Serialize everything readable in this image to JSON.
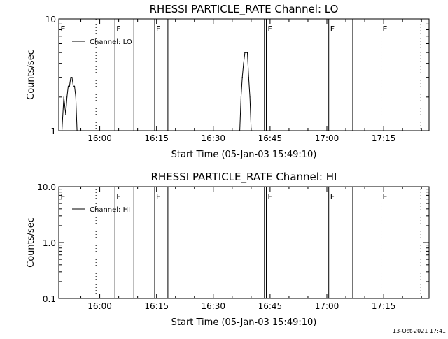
{
  "timestamp": "13-Oct-2021 17:41",
  "chart_data": [
    {
      "type": "line",
      "title": "RHESSI PARTICLE_RATE Channel: LO",
      "xlabel": "Start Time (05-Jan-03 15:49:10)",
      "ylabel": "Counts/sec",
      "yscale": "log",
      "ylim": [
        1,
        10
      ],
      "xlim": [
        "15:49:10",
        "17:27:00"
      ],
      "x_ticks": [
        "16:00",
        "16:15",
        "16:30",
        "16:45",
        "17:00",
        "17:15"
      ],
      "y_ticks": [
        {
          "value": 1,
          "label": "1"
        },
        {
          "value": 10,
          "label": "10"
        }
      ],
      "legend": "top-left",
      "series": [
        {
          "name": "Channel: LO",
          "points": [
            [
              "15:50:00",
              1
            ],
            [
              "15:50:30",
              2
            ],
            [
              "15:51:00",
              1.4
            ],
            [
              "15:51:20",
              2
            ],
            [
              "15:51:40",
              2.5
            ],
            [
              "15:52:00",
              2.5
            ],
            [
              "15:52:20",
              3
            ],
            [
              "15:52:40",
              3
            ],
            [
              "15:53:00",
              2.5
            ],
            [
              "15:53:20",
              2.5
            ],
            [
              "15:53:40",
              2
            ],
            [
              "15:54:00",
              1
            ],
            [
              "16:37:00",
              1
            ],
            [
              "16:37:20",
              2
            ],
            [
              "16:37:40",
              3
            ],
            [
              "16:38:00",
              4
            ],
            [
              "16:38:20",
              5
            ],
            [
              "16:39:00",
              5
            ],
            [
              "16:39:20",
              3
            ],
            [
              "16:39:40",
              2
            ],
            [
              "16:40:00",
              1
            ],
            [
              "16:40:20",
              1
            ]
          ]
        }
      ],
      "event_lines": [
        {
          "x": "15:49:15",
          "label": "E",
          "style": "dotted"
        },
        {
          "x": "15:59:00",
          "label": "",
          "style": "dotted"
        },
        {
          "x": "16:04:00",
          "label": "F",
          "style": "solid"
        },
        {
          "x": "16:09:00",
          "label": "",
          "style": "solid"
        },
        {
          "x": "16:14:30",
          "label": "F",
          "style": "solid"
        },
        {
          "x": "16:18:00",
          "label": "",
          "style": "solid"
        },
        {
          "x": "16:43:30",
          "label": "",
          "style": "solid"
        },
        {
          "x": "16:44:00",
          "label": "F",
          "style": "solid"
        },
        {
          "x": "17:00:30",
          "label": "F",
          "style": "solid"
        },
        {
          "x": "17:06:50",
          "label": "",
          "style": "solid"
        },
        {
          "x": "17:14:20",
          "label": "E",
          "style": "dotted"
        },
        {
          "x": "17:24:50",
          "label": "",
          "style": "dotted"
        }
      ],
      "grid": false
    },
    {
      "type": "line",
      "title": "RHESSI PARTICLE_RATE Channel: HI",
      "xlabel": "Start Time (05-Jan-03 15:49:10)",
      "ylabel": "Counts/sec",
      "yscale": "log",
      "ylim": [
        0.1,
        10
      ],
      "xlim": [
        "15:49:10",
        "17:27:00"
      ],
      "x_ticks": [
        "16:00",
        "16:15",
        "16:30",
        "16:45",
        "17:00",
        "17:15"
      ],
      "y_ticks": [
        {
          "value": 0.1,
          "label": "0.1"
        },
        {
          "value": 1,
          "label": "1.0"
        },
        {
          "value": 10,
          "label": "10.0"
        }
      ],
      "legend": "top-left",
      "series": [
        {
          "name": "Channel: HI",
          "points": []
        }
      ],
      "event_lines": [
        {
          "x": "15:49:15",
          "label": "E",
          "style": "dotted"
        },
        {
          "x": "15:59:00",
          "label": "",
          "style": "dotted"
        },
        {
          "x": "16:04:00",
          "label": "F",
          "style": "solid"
        },
        {
          "x": "16:09:00",
          "label": "",
          "style": "solid"
        },
        {
          "x": "16:14:30",
          "label": "F",
          "style": "solid"
        },
        {
          "x": "16:18:00",
          "label": "",
          "style": "solid"
        },
        {
          "x": "16:43:30",
          "label": "",
          "style": "solid"
        },
        {
          "x": "16:44:00",
          "label": "F",
          "style": "solid"
        },
        {
          "x": "17:00:30",
          "label": "F",
          "style": "solid"
        },
        {
          "x": "17:06:50",
          "label": "",
          "style": "solid"
        },
        {
          "x": "17:14:20",
          "label": "E",
          "style": "dotted"
        },
        {
          "x": "17:24:50",
          "label": "",
          "style": "dotted"
        }
      ],
      "grid": false
    }
  ]
}
